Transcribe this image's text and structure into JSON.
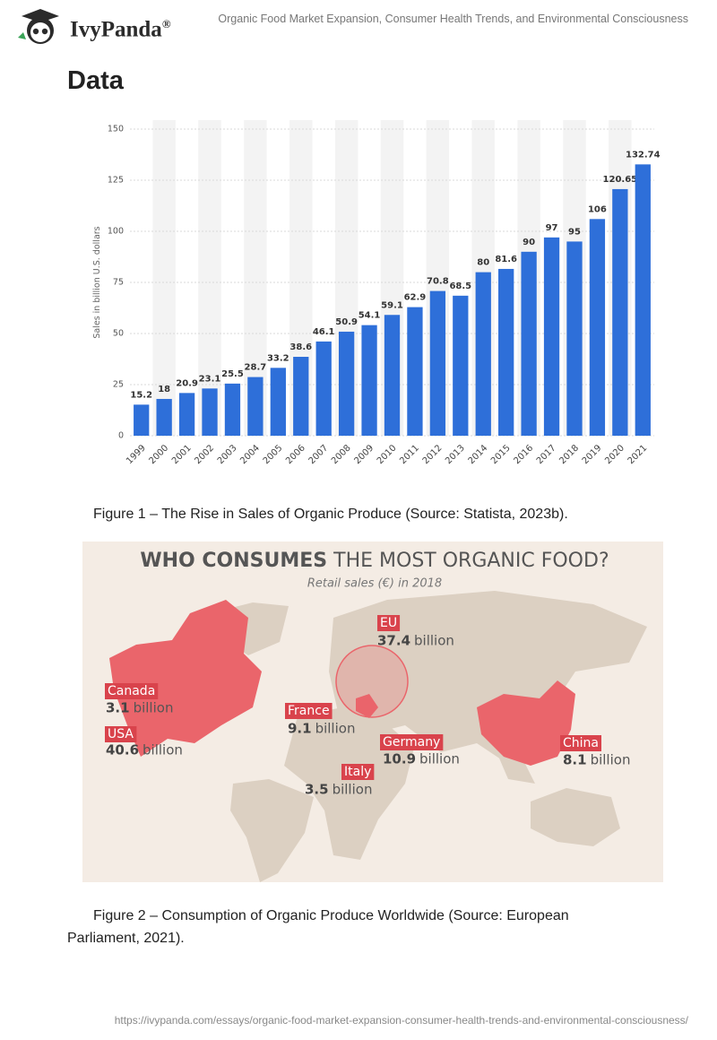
{
  "header": {
    "brand": "IvyPanda",
    "registered": "®",
    "title": "Organic Food Market Expansion, Consumer Health Trends, and Environmental Consciousness"
  },
  "heading": "Data",
  "chart_data": {
    "type": "bar",
    "y_label": "Sales in billion U.S. dollars",
    "categories": [
      "1999",
      "2000",
      "2001",
      "2002",
      "2003",
      "2004",
      "2005",
      "2006",
      "2007",
      "2008",
      "2009",
      "2010",
      "2011",
      "2012",
      "2013",
      "2014",
      "2015",
      "2016",
      "2017",
      "2018",
      "2019",
      "2020",
      "2021"
    ],
    "values": [
      15.2,
      18,
      20.9,
      23.1,
      25.5,
      28.7,
      33.2,
      38.6,
      46.1,
      50.9,
      54.1,
      59.1,
      62.9,
      70.8,
      68.5,
      80,
      81.6,
      90,
      97,
      95,
      106,
      120.65,
      132.74
    ],
    "color": "#2e6fd9",
    "ylim": [
      0,
      150
    ],
    "yticks": [
      0,
      25,
      50,
      75,
      100,
      125,
      150
    ],
    "grid": true
  },
  "captions": [
    "Figure 1 – The Rise in Sales of Organic Produce (Source: Statista, 2023b).",
    "Figure 2 – Consumption of Organic Produce Worldwide (Source: European Parliament, 2021)."
  ],
  "map": {
    "title_bold": "WHO CONSUMES",
    "title_rest": "THE MOST ORGANIC FOOD?",
    "subtitle": "Retail sales (€) in 2018",
    "regions": [
      {
        "name": "EU",
        "amount": 37.4,
        "unit": "billion"
      },
      {
        "name": "Canada",
        "amount": 3.1,
        "unit": "billion"
      },
      {
        "name": "USA",
        "amount": 40.6,
        "unit": "billion"
      },
      {
        "name": "France",
        "amount": 9.1,
        "unit": "billion"
      },
      {
        "name": "Germany",
        "amount": 10.9,
        "unit": "billion"
      },
      {
        "name": "Italy",
        "amount": 3.5,
        "unit": "billion"
      },
      {
        "name": "China",
        "amount": 8.1,
        "unit": "billion"
      }
    ]
  },
  "footer": "https://ivypanda.com/essays/organic-food-market-expansion-consumer-health-trends-and-environmental-consciousness/"
}
